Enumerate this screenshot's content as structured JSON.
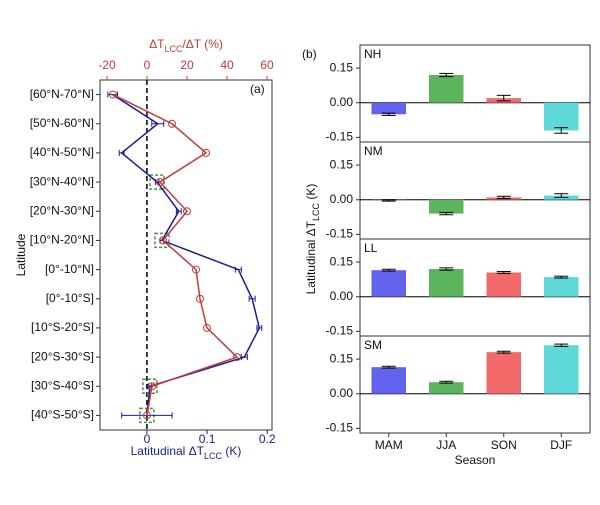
{
  "chart_data": [
    {
      "type": "line",
      "panel_label": "(a)",
      "ylabel": "Latitude",
      "xlabel": [
        "Latitudinal ΔT",
        "LCC",
        " (K)"
      ],
      "x2label": [
        "ΔT",
        "LCC",
        "/ΔT (%)"
      ],
      "categories": [
        "[60°N-70°N]",
        "[50°N-60°N]",
        "[40°N-50°N]",
        "[30°N-40°N]",
        "[20°N-30°N]",
        "[10°N-20°N]",
        "[0°-10°N]",
        "[0°-10°S]",
        "[10°S-20°S]",
        "[20°S-30°S]",
        "[30°S-40°S]",
        "[40°S-50°S]"
      ],
      "xlim": [
        -0.078,
        0.208
      ],
      "xticks": [
        0,
        0.1,
        0.2
      ],
      "x2lim": [
        -23.5,
        62.5
      ],
      "x2ticks": [
        -20,
        0,
        20,
        40,
        60
      ],
      "boxed": [
        false,
        false,
        false,
        true,
        false,
        true,
        false,
        false,
        false,
        false,
        true,
        true
      ],
      "series": [
        {
          "color": "#1c1c94",
          "values": [
            -0.057,
            0.018,
            -0.042,
            0.017,
            0.053,
            0.025,
            0.152,
            0.175,
            0.187,
            0.162,
            0.005,
            0.0
          ],
          "errors": [
            0.008,
            0.01,
            0.004,
            0.003,
            0.004,
            0.003,
            0.005,
            0.005,
            0.004,
            0.005,
            0.003,
            0.042
          ]
        },
        {
          "color": "#c23b3b",
          "axis": "x2",
          "values": [
            -17,
            12.5,
            29.5,
            6.5,
            20,
            8,
            24.5,
            26.5,
            30,
            45,
            2.5,
            0
          ]
        }
      ]
    },
    {
      "type": "bar",
      "panel_label": "(b)",
      "label": "NH",
      "categories": [
        "MAM",
        "JJA",
        "SON",
        "DJF"
      ],
      "colors": [
        "#6262ee",
        "#5cb55c",
        "#f26a6a",
        "#5ed8d8"
      ],
      "values": [
        -0.05,
        0.12,
        0.02,
        -0.12
      ],
      "errors": [
        0.005,
        0.007,
        0.012,
        0.012
      ],
      "ylim": [
        -0.17,
        0.25
      ],
      "yticks": [
        -0.15,
        {
          "value": 0,
          "label": "0.00"
        },
        0.15
      ]
    },
    {
      "type": "bar",
      "label": "NM",
      "categories": [
        "MAM",
        "JJA",
        "SON",
        "DJF"
      ],
      "colors": [
        "#6262ee",
        "#5cb55c",
        "#f26a6a",
        "#5ed8d8"
      ],
      "values": [
        -0.003,
        -0.06,
        0.01,
        0.018
      ],
      "errors": [
        0.003,
        0.005,
        0.005,
        0.008
      ],
      "ylim": [
        -0.17,
        0.25
      ],
      "yticks": [
        -0.15,
        {
          "value": 0,
          "label": "0.00"
        },
        0.15
      ]
    },
    {
      "type": "bar",
      "label": "LL",
      "categories": [
        "MAM",
        "JJA",
        "SON",
        "DJF"
      ],
      "colors": [
        "#6262ee",
        "#5cb55c",
        "#f26a6a",
        "#5ed8d8"
      ],
      "values": [
        0.115,
        0.12,
        0.105,
        0.085
      ],
      "errors": [
        0.004,
        0.005,
        0.004,
        0.004
      ],
      "ylim": [
        -0.17,
        0.25
      ],
      "yticks": [
        -0.15,
        {
          "value": 0,
          "label": "0.00"
        },
        0.15
      ]
    },
    {
      "type": "bar",
      "label": "SM",
      "categories": [
        "MAM",
        "JJA",
        "SON",
        "DJF"
      ],
      "colors": [
        "#6262ee",
        "#5cb55c",
        "#f26a6a",
        "#5ed8d8"
      ],
      "values": [
        0.115,
        0.05,
        0.18,
        0.21
      ],
      "errors": [
        0.004,
        0.004,
        0.004,
        0.005
      ],
      "ylim": [
        -0.17,
        0.25
      ],
      "yticks": [
        -0.15,
        {
          "value": 0,
          "label": "0.00"
        },
        0.15
      ],
      "xlabel": "Season",
      "ylabel": [
        "Latitudinal ΔT",
        "LCC",
        " (K)"
      ]
    }
  ]
}
